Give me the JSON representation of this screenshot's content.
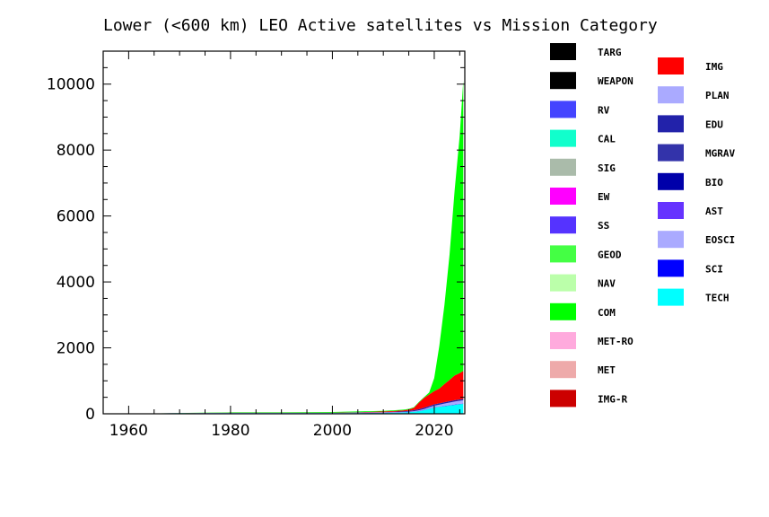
{
  "chart_data": {
    "type": "area",
    "title": "Lower (<600 km) LEO Active satellites vs Mission Category",
    "xlabel": "",
    "ylabel": "",
    "xlim": [
      1955,
      2026
    ],
    "ylim": [
      0,
      11000
    ],
    "x_ticks": [
      1960,
      1980,
      2000,
      2020
    ],
    "y_ticks": [
      0,
      2000,
      4000,
      6000,
      8000,
      10000
    ],
    "legend_position": "right",
    "stack_order": [
      "TECH",
      "SCI",
      "EOSCI",
      "AST",
      "BIO",
      "MGRAV",
      "EDU",
      "PLAN",
      "IMG",
      "IMG-R",
      "MET",
      "MET-RO",
      "COM",
      "NAV",
      "GEOD",
      "SS",
      "EW",
      "SIG",
      "CAL",
      "RV",
      "WEAPON",
      "TARG"
    ],
    "x": [
      1957,
      1965,
      1970,
      1980,
      1990,
      2000,
      2005,
      2010,
      2012,
      2014,
      2015,
      2016,
      2017,
      2018,
      2019,
      2020,
      2021,
      2022,
      2023,
      2024,
      2025,
      2025.7
    ],
    "series": [
      {
        "name": "TECH",
        "color": "#00ffff",
        "values": [
          0,
          5,
          15,
          20,
          20,
          20,
          20,
          25,
          30,
          40,
          50,
          60,
          80,
          110,
          150,
          190,
          210,
          230,
          250,
          270,
          290,
          300
        ]
      },
      {
        "name": "SCI",
        "color": "#0000ff",
        "values": [
          0,
          5,
          5,
          5,
          5,
          5,
          5,
          5,
          5,
          5,
          5,
          5,
          5,
          5,
          5,
          5,
          5,
          10,
          10,
          10,
          10,
          10
        ]
      },
      {
        "name": "EOSCI",
        "color": "#aaaaff",
        "values": [
          0,
          0,
          0,
          5,
          5,
          5,
          10,
          10,
          10,
          10,
          10,
          15,
          20,
          30,
          40,
          50,
          60,
          70,
          80,
          90,
          95,
          100
        ]
      },
      {
        "name": "AST",
        "color": "#6633ff",
        "values": [
          0,
          0,
          0,
          0,
          0,
          0,
          0,
          0,
          0,
          0,
          0,
          0,
          0,
          0,
          0,
          0,
          0,
          0,
          0,
          0,
          0,
          0
        ]
      },
      {
        "name": "BIO",
        "color": "#0000aa",
        "values": [
          0,
          0,
          0,
          0,
          0,
          0,
          0,
          0,
          0,
          0,
          0,
          0,
          0,
          0,
          0,
          0,
          0,
          0,
          0,
          0,
          0,
          0
        ]
      },
      {
        "name": "MGRAV",
        "color": "#3333aa",
        "values": [
          0,
          0,
          0,
          0,
          0,
          0,
          0,
          0,
          0,
          0,
          0,
          0,
          0,
          0,
          0,
          0,
          0,
          0,
          0,
          0,
          0,
          0
        ]
      },
      {
        "name": "EDU",
        "color": "#2222aa",
        "values": [
          0,
          0,
          0,
          0,
          0,
          0,
          5,
          10,
          15,
          20,
          25,
          30,
          35,
          40,
          40,
          40,
          40,
          40,
          40,
          40,
          40,
          40
        ]
      },
      {
        "name": "PLAN",
        "color": "#aaaaff",
        "values": [
          0,
          0,
          0,
          0,
          0,
          0,
          0,
          0,
          0,
          0,
          0,
          0,
          0,
          0,
          0,
          0,
          0,
          0,
          0,
          0,
          0,
          0
        ]
      },
      {
        "name": "IMG",
        "color": "#ff0000",
        "values": [
          0,
          0,
          0,
          5,
          5,
          5,
          10,
          20,
          25,
          30,
          40,
          70,
          200,
          300,
          350,
          400,
          450,
          550,
          650,
          750,
          800,
          850
        ]
      },
      {
        "name": "IMG-R",
        "color": "#cc0000",
        "values": [
          0,
          0,
          0,
          0,
          0,
          0,
          0,
          0,
          0,
          0,
          0,
          0,
          0,
          0,
          0,
          0,
          0,
          0,
          0,
          0,
          0,
          0
        ]
      },
      {
        "name": "MET",
        "color": "#eeaaaa",
        "values": [
          0,
          0,
          0,
          0,
          0,
          0,
          0,
          0,
          0,
          0,
          0,
          0,
          0,
          0,
          0,
          0,
          0,
          0,
          0,
          0,
          0,
          0
        ]
      },
      {
        "name": "MET-RO",
        "color": "#ffaadd",
        "values": [
          0,
          0,
          0,
          0,
          0,
          0,
          0,
          0,
          0,
          0,
          0,
          0,
          0,
          0,
          0,
          0,
          0,
          0,
          0,
          0,
          0,
          0
        ]
      },
      {
        "name": "COM",
        "color": "#00ff00",
        "values": [
          0,
          0,
          5,
          10,
          15,
          20,
          20,
          20,
          20,
          20,
          20,
          20,
          20,
          20,
          60,
          400,
          1300,
          2400,
          3800,
          5600,
          7200,
          8800
        ]
      },
      {
        "name": "NAV",
        "color": "#bbffaa",
        "values": [
          0,
          0,
          0,
          0,
          0,
          0,
          0,
          0,
          0,
          0,
          0,
          0,
          0,
          0,
          0,
          0,
          0,
          0,
          0,
          0,
          0,
          0
        ]
      },
      {
        "name": "GEOD",
        "color": "#44ff44",
        "values": [
          0,
          0,
          0,
          0,
          0,
          0,
          0,
          0,
          0,
          0,
          0,
          0,
          0,
          0,
          0,
          0,
          0,
          0,
          0,
          0,
          0,
          0
        ]
      },
      {
        "name": "SS",
        "color": "#5533ff",
        "values": [
          0,
          0,
          0,
          0,
          0,
          0,
          0,
          0,
          0,
          0,
          0,
          0,
          0,
          0,
          0,
          0,
          0,
          0,
          0,
          0,
          0,
          0
        ]
      },
      {
        "name": "EW",
        "color": "#ff00ff",
        "values": [
          0,
          0,
          0,
          0,
          0,
          0,
          0,
          0,
          0,
          0,
          0,
          0,
          0,
          0,
          0,
          0,
          0,
          0,
          0,
          0,
          0,
          0
        ]
      },
      {
        "name": "SIG",
        "color": "#aabbaa",
        "values": [
          0,
          0,
          0,
          0,
          0,
          0,
          0,
          0,
          0,
          0,
          0,
          0,
          0,
          0,
          0,
          0,
          0,
          0,
          0,
          0,
          0,
          0
        ]
      },
      {
        "name": "CAL",
        "color": "#11ffcc",
        "values": [
          0,
          0,
          0,
          0,
          0,
          0,
          0,
          0,
          0,
          0,
          0,
          0,
          0,
          0,
          0,
          0,
          0,
          0,
          0,
          0,
          0,
          0
        ]
      },
      {
        "name": "RV",
        "color": "#4444ff",
        "values": [
          0,
          0,
          0,
          0,
          0,
          0,
          0,
          0,
          0,
          0,
          0,
          0,
          0,
          0,
          0,
          0,
          0,
          0,
          0,
          0,
          0,
          0
        ]
      },
      {
        "name": "WEAPON",
        "color": "#000000",
        "values": [
          0,
          0,
          0,
          0,
          0,
          0,
          0,
          0,
          0,
          0,
          0,
          0,
          0,
          0,
          0,
          0,
          0,
          0,
          0,
          0,
          0,
          0
        ]
      },
      {
        "name": "TARG",
        "color": "#000000",
        "values": [
          0,
          0,
          0,
          0,
          0,
          0,
          0,
          0,
          0,
          0,
          0,
          0,
          0,
          0,
          0,
          0,
          0,
          0,
          0,
          0,
          0,
          0
        ]
      }
    ],
    "legend_col1": [
      "TARG",
      "WEAPON",
      "RV",
      "CAL",
      "SIG",
      "EW",
      "SS",
      "GEOD",
      "NAV",
      "COM",
      "MET-RO",
      "MET",
      "IMG-R"
    ],
    "legend_col2": [
      "IMG",
      "PLAN",
      "EDU",
      "MGRAV",
      "BIO",
      "AST",
      "EOSCI",
      "SCI",
      "TECH"
    ]
  }
}
